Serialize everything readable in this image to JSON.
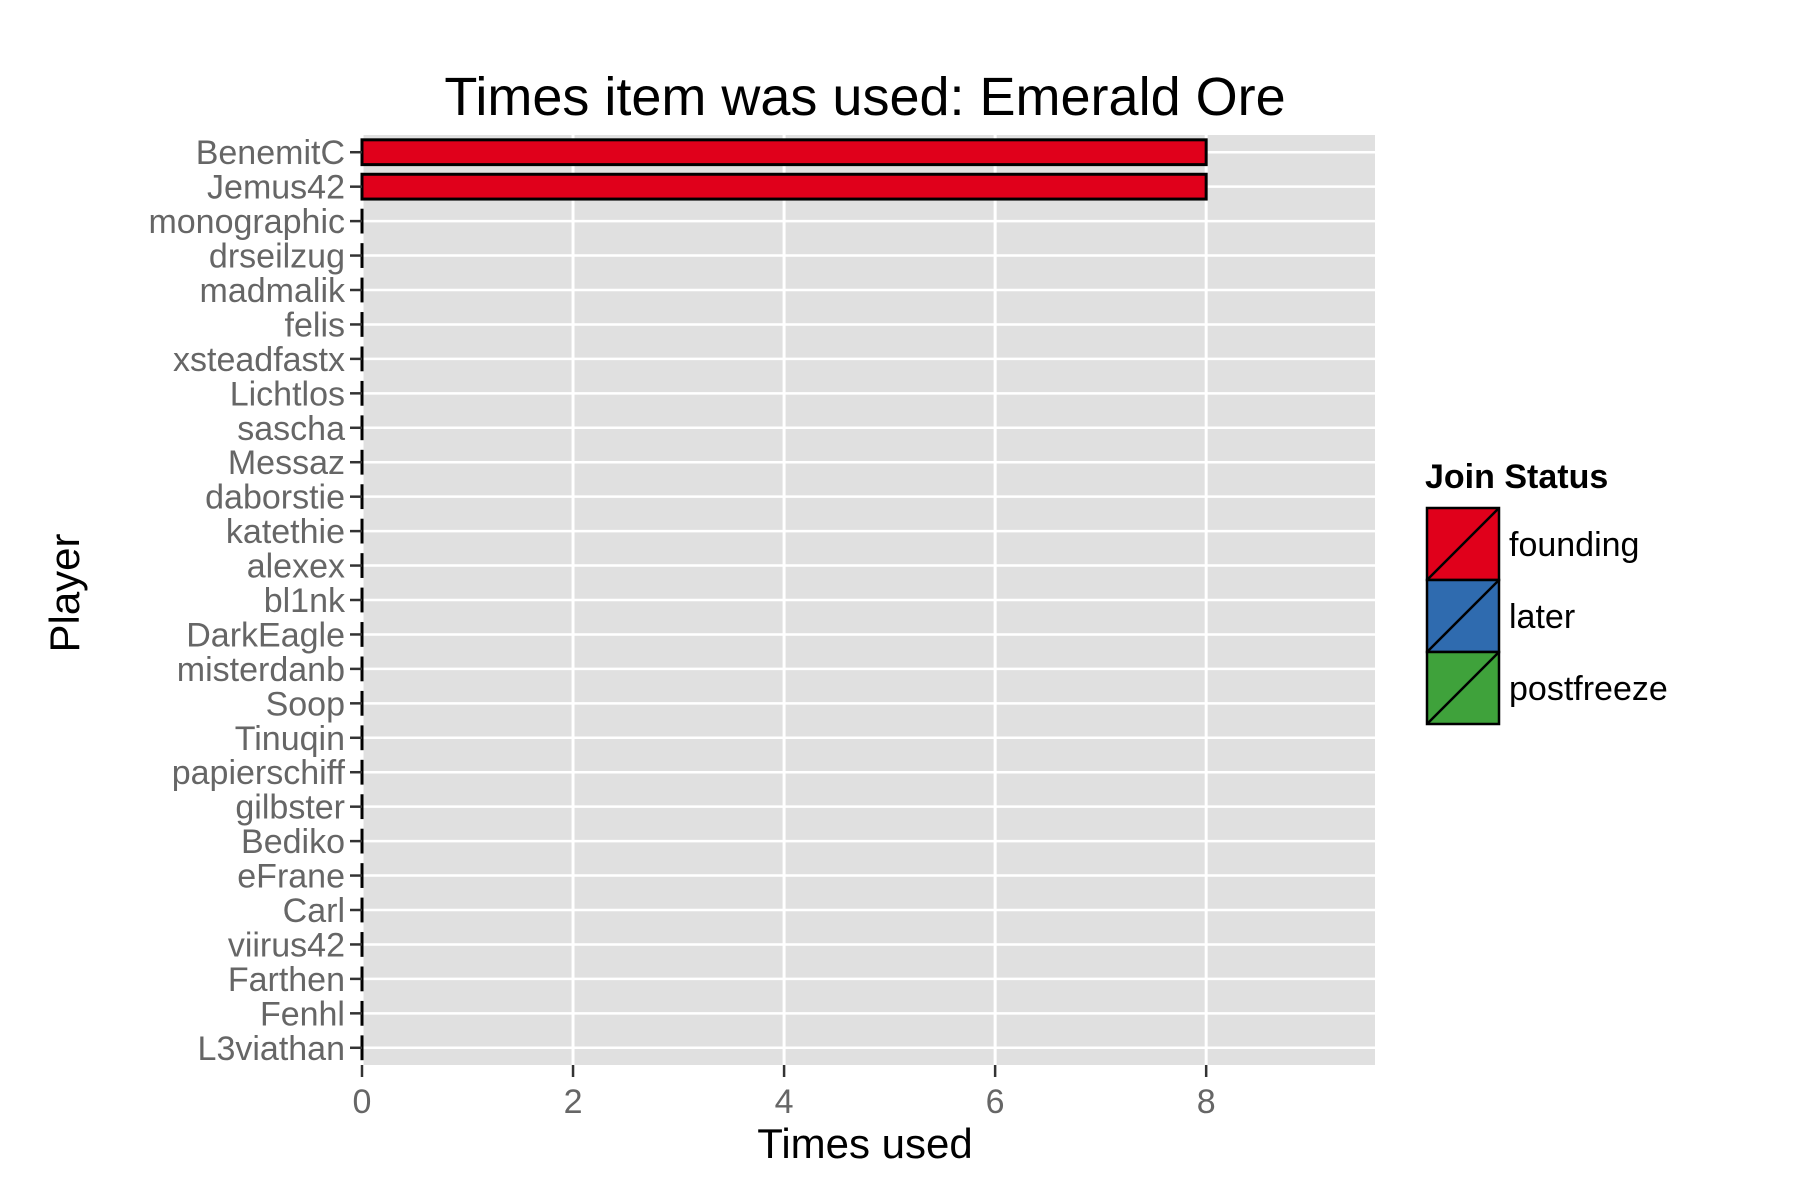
{
  "chart_data": {
    "type": "bar",
    "orientation": "horizontal",
    "title": "Times item was used: Emerald Ore",
    "xlabel": "Times used",
    "ylabel": "Player",
    "xlim": [
      0,
      9.6
    ],
    "xticks": [
      0,
      2,
      4,
      6,
      8
    ],
    "grid": true,
    "legend": {
      "title": "Join Status",
      "placement": "right",
      "items": [
        {
          "label": "founding",
          "color": "#E0001B"
        },
        {
          "label": "later",
          "color": "#2F6BAF"
        },
        {
          "label": "postfreeze",
          "color": "#3FA23B"
        }
      ]
    },
    "categories": [
      "BenemitC",
      "Jemus42",
      "monographic",
      "drseilzug",
      "madmalik",
      "felis",
      "xsteadfastx",
      "Lichtlos",
      "sascha",
      "Messaz",
      "daborstie",
      "katethie",
      "alexex",
      "bl1nk",
      "DarkEagle",
      "misterdanb",
      "Soop",
      "Tinuqin",
      "papierschiff",
      "gilbster",
      "Bediko",
      "eFrane",
      "Carl",
      "viirus42",
      "Farthen",
      "Fenhl",
      "L3viathan"
    ],
    "values": [
      8,
      8,
      0,
      0,
      0,
      0,
      0,
      0,
      0,
      0,
      0,
      0,
      0,
      0,
      0,
      0,
      0,
      0,
      0,
      0,
      0,
      0,
      0,
      0,
      0,
      0,
      0
    ],
    "status": [
      "founding",
      "founding",
      "founding",
      "founding",
      "founding",
      "founding",
      "founding",
      "founding",
      "founding",
      "founding",
      "founding",
      "founding",
      "founding",
      "founding",
      "founding",
      "founding",
      "founding",
      "founding",
      "founding",
      "founding",
      "founding",
      "founding",
      "founding",
      "founding",
      "founding",
      "founding",
      "founding"
    ]
  },
  "colors": {
    "panel_background": "#E0E0E0",
    "grid": "#FFFFFF",
    "bar_outline": "#000000"
  }
}
